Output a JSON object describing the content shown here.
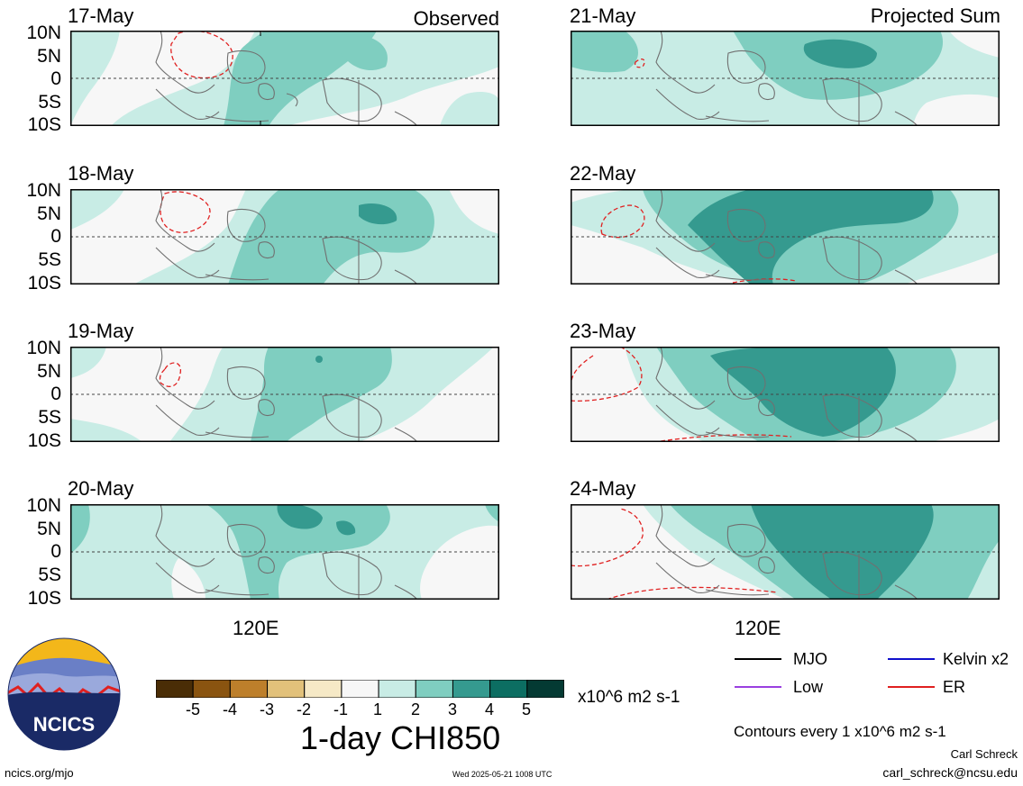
{
  "panels": [
    {
      "date": "17-May",
      "corner": "Observed"
    },
    {
      "date": "18-May",
      "corner": ""
    },
    {
      "date": "19-May",
      "corner": ""
    },
    {
      "date": "20-May",
      "corner": ""
    },
    {
      "date": "21-May",
      "corner": "Projected Sum"
    },
    {
      "date": "22-May",
      "corner": ""
    },
    {
      "date": "23-May",
      "corner": ""
    },
    {
      "date": "24-May",
      "corner": ""
    }
  ],
  "lat_labels": [
    "10N",
    "5N",
    "0",
    "5S",
    "10S"
  ],
  "lon_label": "120E",
  "legend": {
    "mjo": "MJO",
    "kelvin": "Kelvin x2",
    "low": "Low",
    "er": "ER",
    "colors": {
      "mjo": "#000000",
      "kelvin": "#1010cc",
      "low": "#9a40e0",
      "er": "#e02020"
    }
  },
  "colorbar": {
    "ticks": [
      "-5",
      "-4",
      "-3",
      "-2",
      "-1",
      "1",
      "2",
      "3",
      "4",
      "5"
    ],
    "colors": [
      "#4a2d06",
      "#8a5410",
      "#bd7f2b",
      "#e2c17a",
      "#f6e9c6",
      "#f7f7f7",
      "#c8ece5",
      "#7fcec0",
      "#359a8f",
      "#0c6e62",
      "#043a33"
    ],
    "units": "x10^6 m2 s-1",
    "title": "1-day CHI850"
  },
  "contour_note": "Contours every 1 x10^6 m2 s-1",
  "author": "Carl Schreck",
  "email": "carl_schreck@ncsu.edu",
  "site": "ncics.org/mjo",
  "timestamp": "Wed 2025-05-21 1008 UTC",
  "logo_text": "NCICS"
}
